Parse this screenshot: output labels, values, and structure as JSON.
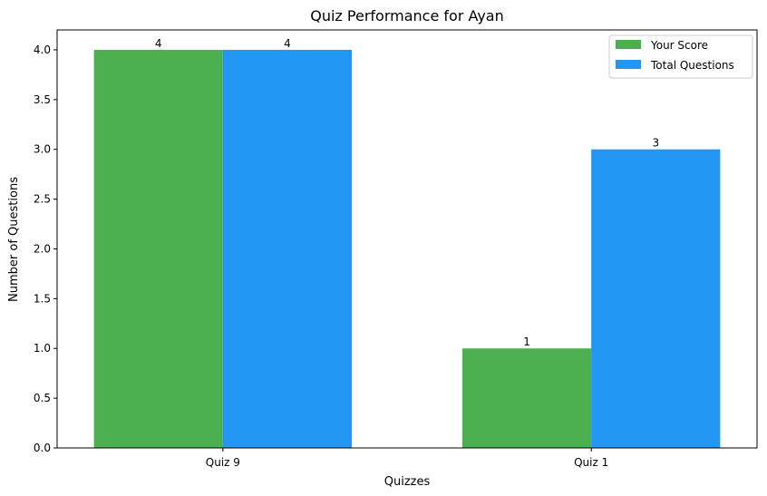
{
  "chart_data": {
    "type": "bar",
    "title": "Quiz Performance for Ayan",
    "xlabel": "Quizzes",
    "ylabel": "Number of Questions",
    "categories": [
      "Quiz 9",
      "Quiz 1"
    ],
    "series": [
      {
        "name": "Your Score",
        "values": [
          4,
          1
        ],
        "color": "#4caf50"
      },
      {
        "name": "Total Questions",
        "values": [
          4,
          3
        ],
        "color": "#2196f3"
      }
    ],
    "ylim": [
      0,
      4.2
    ],
    "yticks": [
      "0.0",
      "0.5",
      "1.0",
      "1.5",
      "2.0",
      "2.5",
      "3.0",
      "3.5",
      "4.0"
    ],
    "grid": false,
    "legend_position": "top-right"
  }
}
